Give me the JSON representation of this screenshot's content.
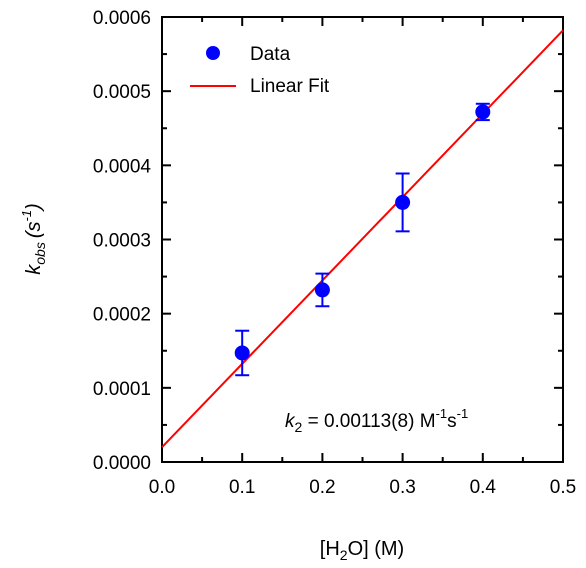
{
  "chart_data": {
    "type": "scatter",
    "xlabel": {
      "prefix": "[H",
      "sub": "2",
      "suffix": "O] (M)"
    },
    "ylabel": {
      "base": "k",
      "sub": "obs",
      "unit": "(s",
      "sup": "-1",
      "close": ")"
    },
    "xlim": [
      0.0,
      0.5
    ],
    "ylim": [
      0.0,
      0.0006
    ],
    "x_ticks": [
      0.0,
      0.1,
      0.2,
      0.3,
      0.4,
      0.5
    ],
    "x_tick_labels": [
      "0.0",
      "0.1",
      "0.2",
      "0.3",
      "0.4",
      "0.5"
    ],
    "y_ticks": [
      0.0,
      0.0001,
      0.0002,
      0.0003,
      0.0004,
      0.0005,
      0.0006
    ],
    "y_tick_labels": [
      "0.0000",
      "0.0001",
      "0.0002",
      "0.0003",
      "0.0004",
      "0.0005",
      "0.0006"
    ],
    "grid": false,
    "legend": {
      "placement": "top-left",
      "entries": [
        {
          "label": "Data",
          "kind": "marker"
        },
        {
          "label": "Linear Fit",
          "kind": "line"
        }
      ]
    },
    "series": [
      {
        "name": "Data",
        "kind": "points",
        "color": "#0000ff",
        "x": [
          0.1,
          0.2,
          0.3,
          0.4
        ],
        "y": [
          0.000147,
          0.000232,
          0.00035,
          0.000472
        ],
        "error": [
          3e-05,
          2.2e-05,
          3.9e-05,
          1.1e-05
        ]
      },
      {
        "name": "Linear Fit",
        "kind": "line",
        "color": "#ff0000",
        "x": [
          0.0,
          0.5
        ],
        "y": [
          2e-05,
          0.000582
        ]
      }
    ],
    "annotation": {
      "k": "k",
      "k_sub": "2",
      "eq": " = 0.00113(8) M",
      "sup1": "-1",
      "s": "s",
      "sup2": "-1"
    }
  }
}
